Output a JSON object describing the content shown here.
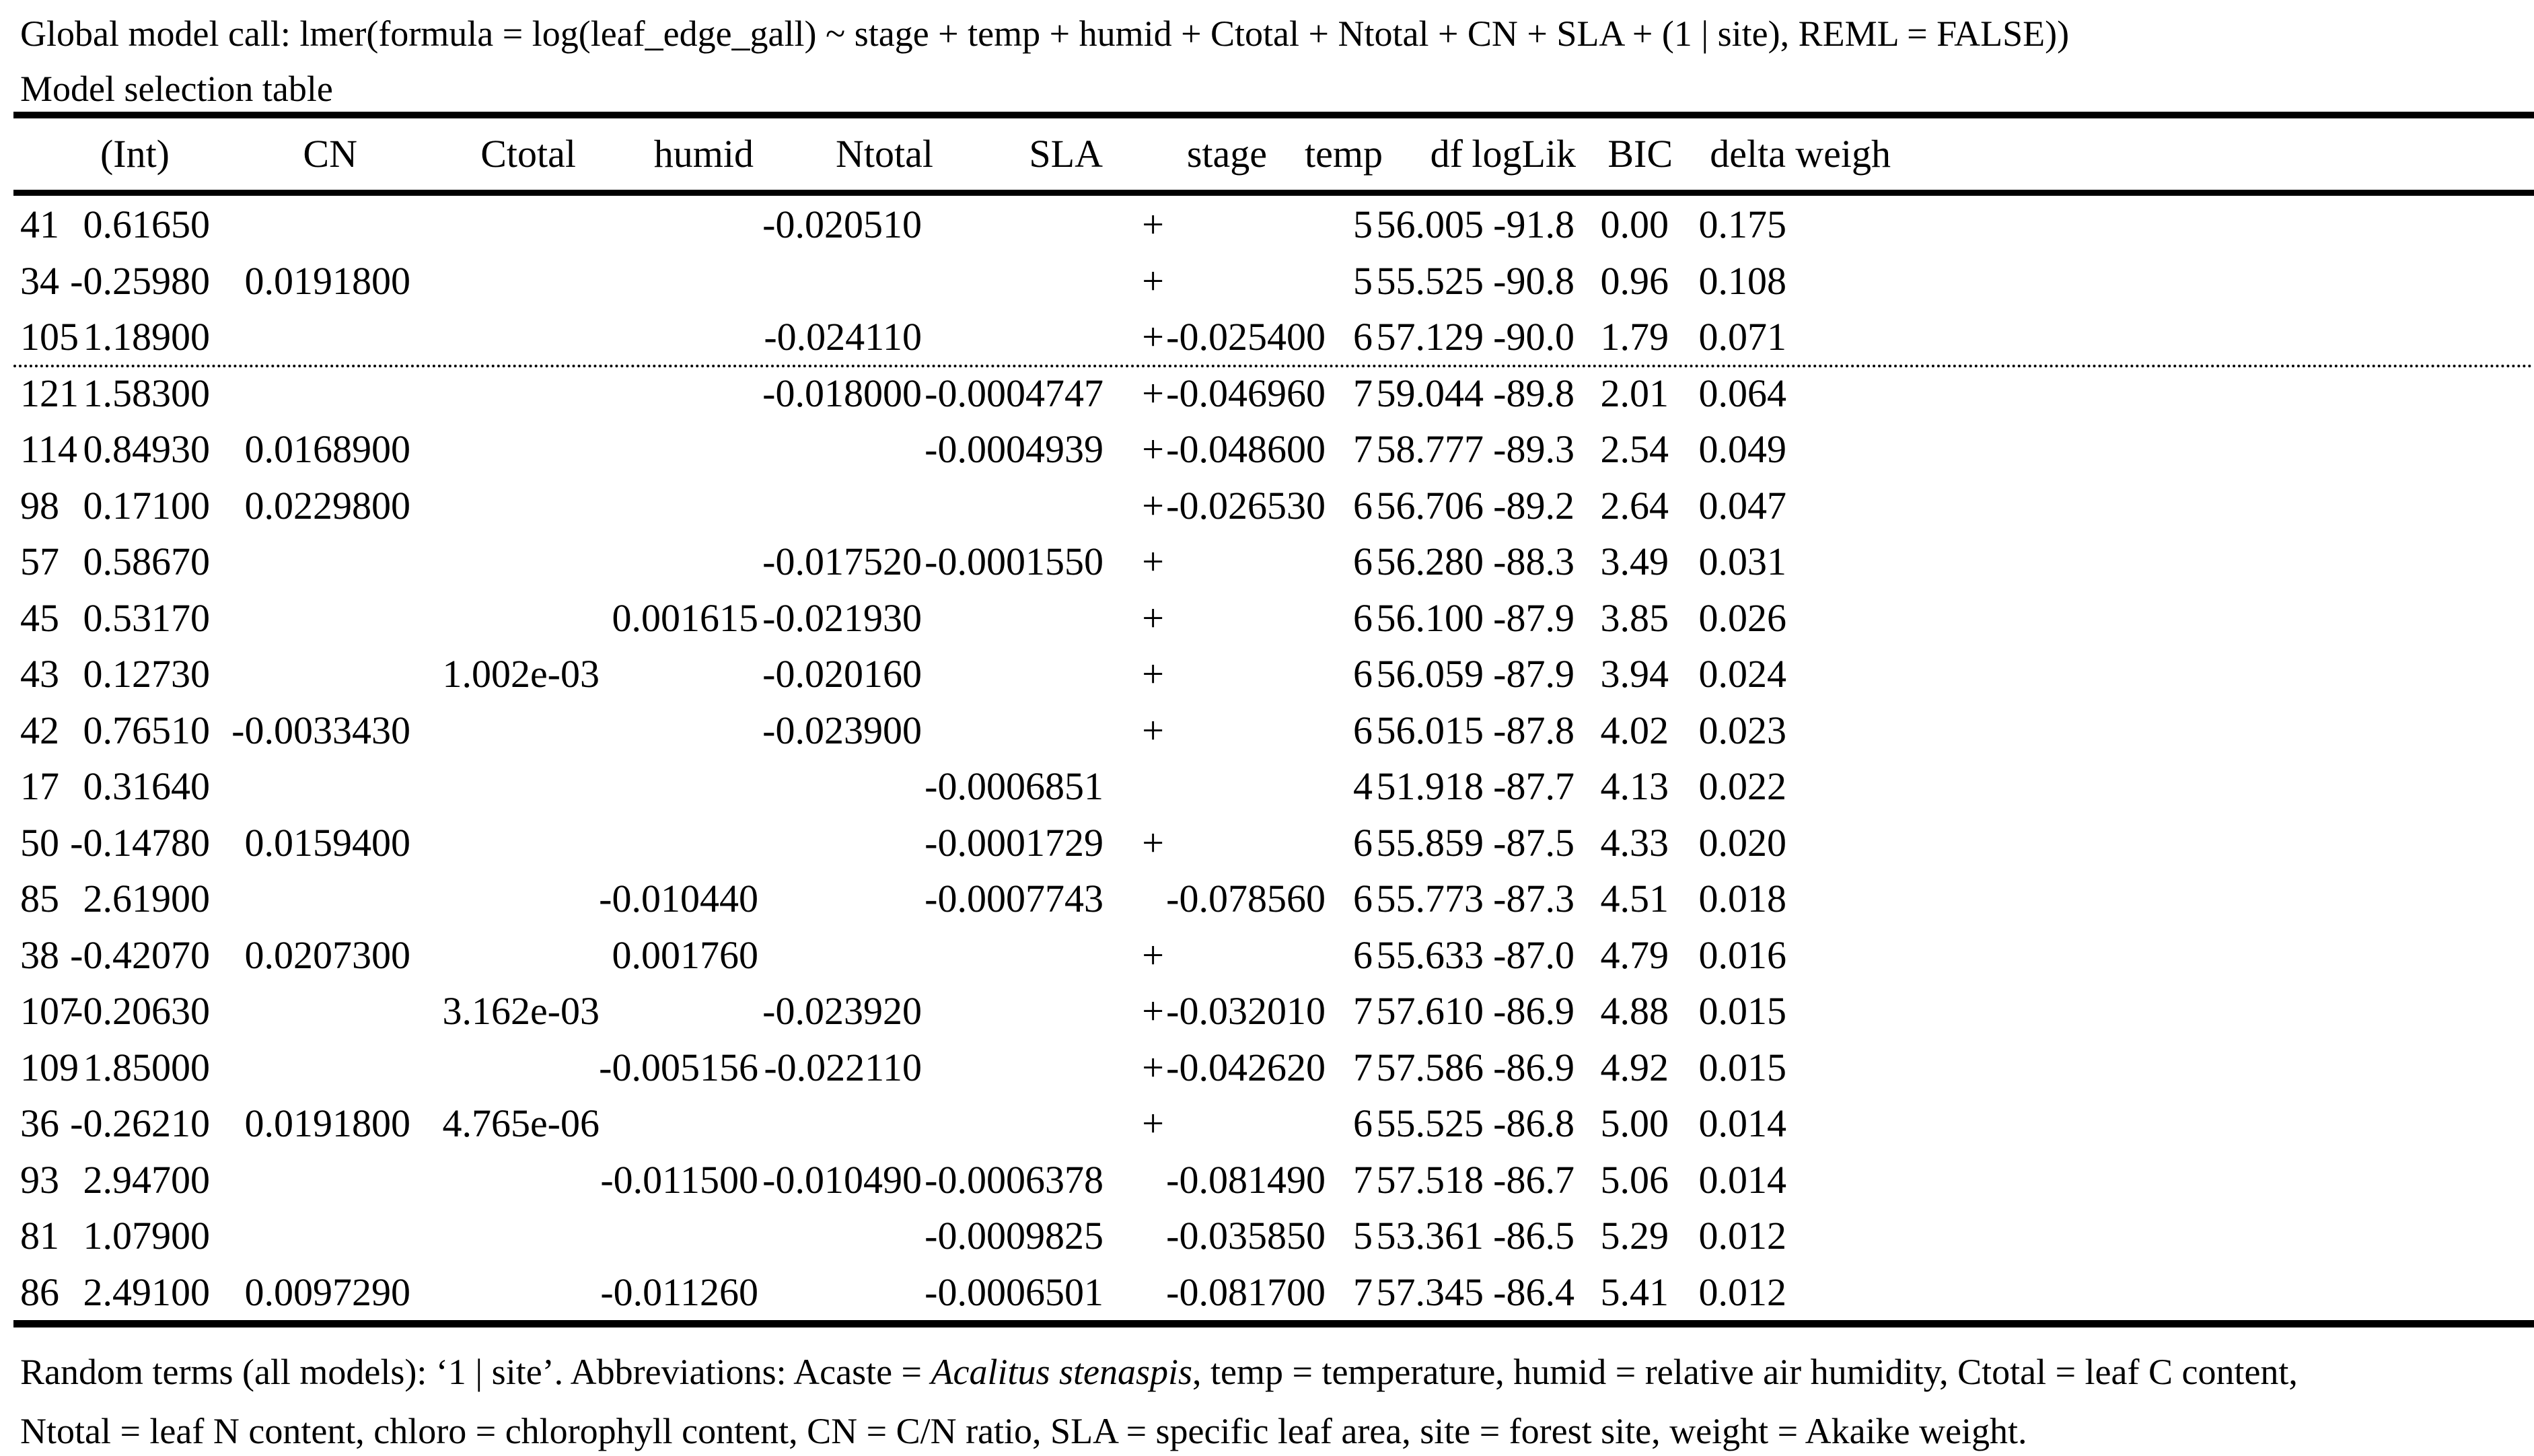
{
  "header": {
    "global_call": "Global model call: lmer(formula = log(leaf_edge_gall) ~ stage + temp + humid + Ctotal + Ntotal + CN + SLA + (1 | site), REML = FALSE))",
    "subtitle": "Model selection table"
  },
  "table": {
    "columns": [
      "",
      "(Int)",
      "CN",
      "Ctotal",
      "humid",
      "Ntotal",
      "SLA",
      "stage",
      "temp",
      "df",
      "logLik",
      "BIC",
      "delta",
      "weigh"
    ],
    "rows": [
      {
        "model": "41",
        "int": "0.61650",
        "cn": "",
        "ctotal": "",
        "humid": "",
        "ntotal": "-0.020510",
        "sla": "",
        "stage": "+",
        "temp": "",
        "df": "5",
        "loglik": "56.005",
        "bic": "-91.8",
        "delta": "0.00",
        "weight": "0.175"
      },
      {
        "model": "34",
        "int": "-0.25980",
        "cn": "0.0191800",
        "ctotal": "",
        "humid": "",
        "ntotal": "",
        "sla": "",
        "stage": "+",
        "temp": "",
        "df": "5",
        "loglik": "55.525",
        "bic": "-90.8",
        "delta": "0.96",
        "weight": "0.108"
      },
      {
        "model": "105",
        "int": "1.18900",
        "cn": "",
        "ctotal": "",
        "humid": "",
        "ntotal": "-0.024110",
        "sla": "",
        "stage": "+",
        "temp": "-0.025400",
        "df": "6",
        "loglik": "57.129",
        "bic": "-90.0",
        "delta": "1.79",
        "weight": "0.071"
      },
      {
        "model": "121",
        "int": "1.58300",
        "cn": "",
        "ctotal": "",
        "humid": "",
        "ntotal": "-0.018000",
        "sla": "-0.0004747",
        "stage": "+",
        "temp": "-0.046960",
        "df": "7",
        "loglik": "59.044",
        "bic": "-89.8",
        "delta": "2.01",
        "weight": "0.064"
      },
      {
        "model": "114",
        "int": "0.84930",
        "cn": "0.0168900",
        "ctotal": "",
        "humid": "",
        "ntotal": "",
        "sla": "-0.0004939",
        "stage": "+",
        "temp": "-0.048600",
        "df": "7",
        "loglik": "58.777",
        "bic": "-89.3",
        "delta": "2.54",
        "weight": "0.049"
      },
      {
        "model": "98",
        "int": "0.17100",
        "cn": "0.0229800",
        "ctotal": "",
        "humid": "",
        "ntotal": "",
        "sla": "",
        "stage": "+",
        "temp": "-0.026530",
        "df": "6",
        "loglik": "56.706",
        "bic": "-89.2",
        "delta": "2.64",
        "weight": "0.047"
      },
      {
        "model": "57",
        "int": "0.58670",
        "cn": "",
        "ctotal": "",
        "humid": "",
        "ntotal": "-0.017520",
        "sla": "-0.0001550",
        "stage": "+",
        "temp": "",
        "df": "6",
        "loglik": "56.280",
        "bic": "-88.3",
        "delta": "3.49",
        "weight": "0.031"
      },
      {
        "model": "45",
        "int": "0.53170",
        "cn": "",
        "ctotal": "",
        "humid": "0.001615",
        "ntotal": "-0.021930",
        "sla": "",
        "stage": "+",
        "temp": "",
        "df": "6",
        "loglik": "56.100",
        "bic": "-87.9",
        "delta": "3.85",
        "weight": "0.026"
      },
      {
        "model": "43",
        "int": "0.12730",
        "cn": "",
        "ctotal": "1.002e-03",
        "humid": "",
        "ntotal": "-0.020160",
        "sla": "",
        "stage": "+",
        "temp": "",
        "df": "6",
        "loglik": "56.059",
        "bic": "-87.9",
        "delta": "3.94",
        "weight": "0.024"
      },
      {
        "model": "42",
        "int": "0.76510",
        "cn": "-0.0033430",
        "ctotal": "",
        "humid": "",
        "ntotal": "-0.023900",
        "sla": "",
        "stage": "+",
        "temp": "",
        "df": "6",
        "loglik": "56.015",
        "bic": "-87.8",
        "delta": "4.02",
        "weight": "0.023"
      },
      {
        "model": "17",
        "int": "0.31640",
        "cn": "",
        "ctotal": "",
        "humid": "",
        "ntotal": "",
        "sla": "-0.0006851",
        "stage": "",
        "temp": "",
        "df": "4",
        "loglik": "51.918",
        "bic": "-87.7",
        "delta": "4.13",
        "weight": "0.022"
      },
      {
        "model": "50",
        "int": "-0.14780",
        "cn": "0.0159400",
        "ctotal": "",
        "humid": "",
        "ntotal": "",
        "sla": "-0.0001729",
        "stage": "+",
        "temp": "",
        "df": "6",
        "loglik": "55.859",
        "bic": "-87.5",
        "delta": "4.33",
        "weight": "0.020"
      },
      {
        "model": "85",
        "int": "2.61900",
        "cn": "",
        "ctotal": "",
        "humid": "-0.010440",
        "ntotal": "",
        "sla": "-0.0007743",
        "stage": "",
        "temp": "-0.078560",
        "df": "6",
        "loglik": "55.773",
        "bic": "-87.3",
        "delta": "4.51",
        "weight": "0.018"
      },
      {
        "model": "38",
        "int": "-0.42070",
        "cn": "0.0207300",
        "ctotal": "",
        "humid": "0.001760",
        "ntotal": "",
        "sla": "",
        "stage": "+",
        "temp": "",
        "df": "6",
        "loglik": "55.633",
        "bic": "-87.0",
        "delta": "4.79",
        "weight": "0.016"
      },
      {
        "model": "107",
        "int": "-0.20630",
        "cn": "",
        "ctotal": "3.162e-03",
        "humid": "",
        "ntotal": "-0.023920",
        "sla": "",
        "stage": "+",
        "temp": "-0.032010",
        "df": "7",
        "loglik": "57.610",
        "bic": "-86.9",
        "delta": "4.88",
        "weight": "0.015"
      },
      {
        "model": "109",
        "int": "1.85000",
        "cn": "",
        "ctotal": "",
        "humid": "-0.005156",
        "ntotal": "-0.022110",
        "sla": "",
        "stage": "+",
        "temp": "-0.042620",
        "df": "7",
        "loglik": "57.586",
        "bic": "-86.9",
        "delta": "4.92",
        "weight": "0.015"
      },
      {
        "model": "36",
        "int": "-0.26210",
        "cn": "0.0191800",
        "ctotal": "4.765e-06",
        "humid": "",
        "ntotal": "",
        "sla": "",
        "stage": "+",
        "temp": "",
        "df": "6",
        "loglik": "55.525",
        "bic": "-86.8",
        "delta": "5.00",
        "weight": "0.014"
      },
      {
        "model": "93",
        "int": "2.94700",
        "cn": "",
        "ctotal": "",
        "humid": "-0.011500",
        "ntotal": "-0.010490",
        "sla": "-0.0006378",
        "stage": "",
        "temp": "-0.081490",
        "df": "7",
        "loglik": "57.518",
        "bic": "-86.7",
        "delta": "5.06",
        "weight": "0.014"
      },
      {
        "model": "81",
        "int": "1.07900",
        "cn": "",
        "ctotal": "",
        "humid": "",
        "ntotal": "",
        "sla": "-0.0009825",
        "stage": "",
        "temp": "-0.035850",
        "df": "5",
        "loglik": "53.361",
        "bic": "-86.5",
        "delta": "5.29",
        "weight": "0.012"
      },
      {
        "model": "86",
        "int": "2.49100",
        "cn": "0.0097290",
        "ctotal": "",
        "humid": "-0.011260",
        "ntotal": "",
        "sla": "-0.0006501",
        "stage": "",
        "temp": "-0.081700",
        "df": "7",
        "loglik": "57.345",
        "bic": "-86.4",
        "delta": "5.41",
        "weight": "0.012"
      }
    ]
  },
  "footer": {
    "line1_prefix": "Random terms (all models): ‘1 | site’. Abbreviations: Acaste = ",
    "species": "Acalitus stenaspis",
    "line1_suffix": ", temp = temperature, humid = relative air humidity, Ctotal = leaf C content,",
    "line2": "Ntotal = leaf N content, chloro = chlorophyll content, CN = C/N ratio, SLA = specific leaf area, site = forest site, weight = Akaike weight."
  }
}
